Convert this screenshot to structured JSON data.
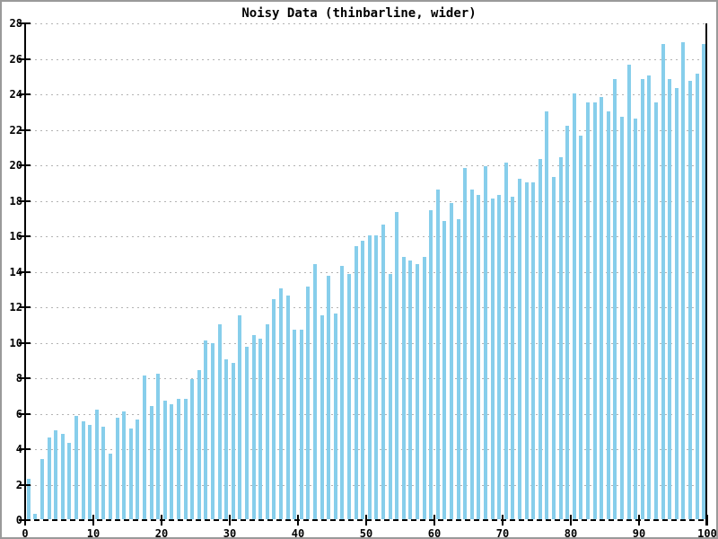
{
  "title": "Noisy Data (thinbarline, wider)",
  "colors": {
    "bar": "#87CEEB",
    "axis": "#000000",
    "grid": "#B3B3B3",
    "border": "#9A9A9A",
    "background": "#FFFFFF",
    "text": "#000000"
  },
  "chart_data": {
    "type": "bar",
    "title": "Noisy Data (thinbarline, wider)",
    "xlabel": "",
    "ylabel": "",
    "xlim": [
      0,
      100
    ],
    "ylim": [
      0,
      28
    ],
    "x_ticks": [
      0,
      10,
      20,
      30,
      40,
      50,
      60,
      70,
      80,
      90,
      100
    ],
    "y_ticks": [
      0,
      2,
      4,
      6,
      8,
      10,
      12,
      14,
      16,
      18,
      20,
      22,
      24,
      26,
      28
    ],
    "grid": "horizontal dotted",
    "legend": "none",
    "bar_style": "thin bars, one per x unit, 100 bars spanning x=0..100",
    "x": [
      0,
      1,
      2,
      3,
      4,
      5,
      6,
      7,
      8,
      9,
      10,
      11,
      12,
      13,
      14,
      15,
      16,
      17,
      18,
      19,
      20,
      21,
      22,
      23,
      24,
      25,
      26,
      27,
      28,
      29,
      30,
      31,
      32,
      33,
      34,
      35,
      36,
      37,
      38,
      39,
      40,
      41,
      42,
      43,
      44,
      45,
      46,
      47,
      48,
      49,
      50,
      51,
      52,
      53,
      54,
      55,
      56,
      57,
      58,
      59,
      60,
      61,
      62,
      63,
      64,
      65,
      66,
      67,
      68,
      69,
      70,
      71,
      72,
      73,
      74,
      75,
      76,
      77,
      78,
      79,
      80,
      81,
      82,
      83,
      84,
      85,
      86,
      87,
      88,
      89,
      90,
      91,
      92,
      93,
      94,
      95,
      96,
      97,
      98,
      99
    ],
    "values": [
      2.3,
      0.3,
      3.4,
      4.6,
      5.0,
      4.8,
      4.3,
      5.8,
      5.5,
      5.3,
      6.2,
      5.2,
      3.7,
      5.7,
      6.1,
      5.1,
      5.6,
      8.1,
      6.4,
      8.2,
      6.7,
      6.5,
      6.8,
      6.8,
      7.9,
      8.4,
      10.1,
      9.9,
      11.0,
      9.0,
      8.8,
      11.5,
      9.7,
      10.4,
      10.2,
      11.0,
      12.4,
      13.0,
      12.6,
      10.7,
      10.7,
      13.1,
      14.4,
      11.5,
      13.7,
      11.6,
      14.3,
      13.8,
      15.4,
      15.7,
      16.0,
      16.0,
      16.6,
      13.8,
      17.3,
      14.8,
      14.6,
      14.4,
      14.8,
      17.4,
      18.6,
      16.8,
      17.8,
      16.9,
      19.8,
      18.6,
      18.3,
      19.9,
      18.1,
      18.3,
      20.1,
      18.2,
      19.2,
      19.0,
      19.0,
      20.3,
      23.0,
      19.3,
      20.4,
      22.2,
      24.0,
      21.6,
      23.5,
      23.5,
      23.8,
      23.0,
      24.8,
      22.7,
      25.6,
      22.6,
      24.8,
      25.0,
      23.5,
      26.8,
      24.8,
      24.3,
      26.9,
      24.7,
      25.1,
      26.8
    ]
  }
}
